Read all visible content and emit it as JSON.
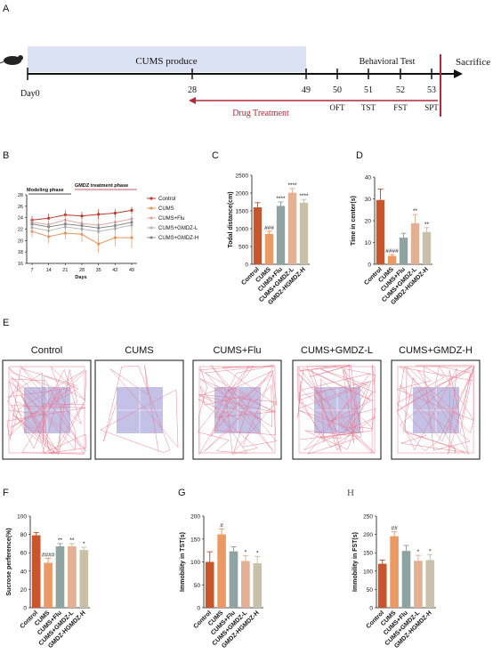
{
  "panel_labels": {
    "A": "A",
    "B": "B",
    "C": "C",
    "D": "D",
    "E": "E",
    "F": "F",
    "G": "G",
    "H": "H"
  },
  "timeline": {
    "cums_label": "CUMS produce",
    "day0": "Day0",
    "behavioral_label": "Behavioral Test",
    "sacrifice": "Sacrifice",
    "drug_label": "Drug Treatment",
    "ticks": [
      "28",
      "49",
      "50",
      "51",
      "52",
      "53"
    ],
    "tests": [
      "OFT",
      "TST",
      "FST",
      "SPT"
    ],
    "band_color": "#dbe2f3",
    "drug_color": "#b5283a"
  },
  "groups": [
    "Control",
    "CUMS",
    "CUMS+Flu",
    "CUMS+GMDZ-L",
    "GMDZ-HGMDZ-H"
  ],
  "group_colors": [
    "#c9552a",
    "#ec9a64",
    "#8fa3a1",
    "#e3b093",
    "#c8c1a8"
  ],
  "chart_b": {
    "type": "line",
    "ylabel": "",
    "xlabel": "Days",
    "x": [
      7,
      14,
      21,
      28,
      35,
      42,
      49
    ],
    "ylim": [
      16,
      28
    ],
    "yticks": [
      "16",
      "18",
      "20",
      "22",
      "24",
      "26",
      "28"
    ],
    "modeling_label": "Modeling phase",
    "treatment_label": "GMDZ treatment phase",
    "legend": [
      "Control",
      "CUMS",
      "CUMS+Flu",
      "CUMS+GMDZ-L",
      "CUMS+GMDZ-H"
    ],
    "series": [
      {
        "name": "Control",
        "values": [
          23.6,
          23.9,
          24.5,
          24.3,
          24.6,
          24.8,
          25.3
        ],
        "err": [
          0.7,
          0.8,
          0.8,
          0.7,
          0.9,
          0.7,
          0.6
        ],
        "color": "#c0392b"
      },
      {
        "name": "CUMS",
        "values": [
          21.6,
          20.7,
          21.3,
          21.1,
          19.4,
          20.5,
          20.5
        ],
        "err": [
          1.0,
          1.2,
          1.1,
          1.3,
          1.6,
          1.5,
          1.8
        ],
        "color": "#e8925a"
      },
      {
        "name": "CUMS+Flu",
        "values": [
          23.2,
          22.8,
          23.6,
          23.0,
          22.7,
          23.2,
          23.8
        ],
        "err": [
          0.8,
          0.9,
          0.9,
          0.8,
          1.0,
          0.9,
          0.9
        ],
        "color": "#e3a7a7"
      },
      {
        "name": "CUMS+GMDZ-L",
        "values": [
          22.3,
          21.7,
          22.4,
          22.0,
          21.6,
          22.1,
          22.7
        ],
        "err": [
          0.9,
          1.0,
          1.0,
          1.0,
          1.1,
          1.0,
          1.0
        ],
        "color": "#b9b9b9"
      },
      {
        "name": "CUMS+GMDZ-H",
        "values": [
          22.9,
          22.4,
          22.9,
          22.6,
          22.2,
          22.6,
          23.2
        ],
        "err": [
          0.8,
          0.9,
          0.9,
          0.9,
          1.0,
          0.9,
          0.9
        ],
        "color": "#8a8a8a"
      }
    ]
  },
  "chart_data": [
    {
      "type": "bar",
      "ylabel": "Todal distance(cm)",
      "ylim": [
        0,
        2500
      ],
      "yticks": [
        "0",
        "500",
        "1000",
        "1500",
        "2000",
        "2500"
      ],
      "values": [
        1600,
        850,
        1640,
        2010,
        1730
      ],
      "err": [
        130,
        80,
        110,
        120,
        90
      ],
      "sig": [
        "",
        "###",
        "****",
        "****",
        "****"
      ]
    },
    {
      "type": "bar",
      "ylabel": "Time in center(s)",
      "ylim": [
        0,
        40
      ],
      "yticks": [
        "0",
        "10",
        "20",
        "30",
        "40"
      ],
      "values": [
        29.5,
        3.8,
        12.2,
        18.8,
        14.8
      ],
      "err": [
        5.0,
        0.6,
        2.0,
        4.0,
        2.0
      ],
      "sig": [
        "",
        "####",
        "",
        "**",
        "**"
      ]
    },
    {
      "type": "bar",
      "ylabel": "Sucrose perference(%)",
      "ylim": [
        0,
        100
      ],
      "yticks": [
        "0",
        "20",
        "40",
        "60",
        "80",
        "100"
      ],
      "values": [
        79,
        49,
        67,
        67,
        63
      ],
      "err": [
        3,
        5,
        3,
        3,
        3
      ],
      "sig": [
        "",
        "####",
        "**",
        "**",
        "*"
      ]
    },
    {
      "type": "bar",
      "ylabel": "Immobility in TST(s)",
      "ylim": [
        0,
        200
      ],
      "yticks": [
        "0",
        "50",
        "100",
        "150",
        "200"
      ],
      "values": [
        100,
        160,
        123,
        102,
        97
      ],
      "err": [
        22,
        12,
        10,
        12,
        15
      ],
      "sig": [
        "",
        "#",
        "",
        "*",
        "*"
      ]
    },
    {
      "type": "bar",
      "ylabel": "Immobility in FST(s)",
      "ylim": [
        0,
        250
      ],
      "yticks": [
        "0",
        "50",
        "100",
        "150",
        "200",
        "250"
      ],
      "values": [
        120,
        195,
        155,
        128,
        130
      ],
      "err": [
        10,
        12,
        15,
        15,
        15
      ],
      "sig": [
        "",
        "##",
        "",
        "*",
        "*"
      ]
    }
  ],
  "panel_e": {
    "labels": [
      "Control",
      "CUMS",
      "CUMS+Flu",
      "CUMS+GMDZ-L",
      "CUMS+GMDZ-H"
    ],
    "density": [
      1.0,
      0.12,
      0.8,
      1.0,
      0.75
    ],
    "trace_color": "#e8738a",
    "center_color": "#b9b6e2"
  }
}
